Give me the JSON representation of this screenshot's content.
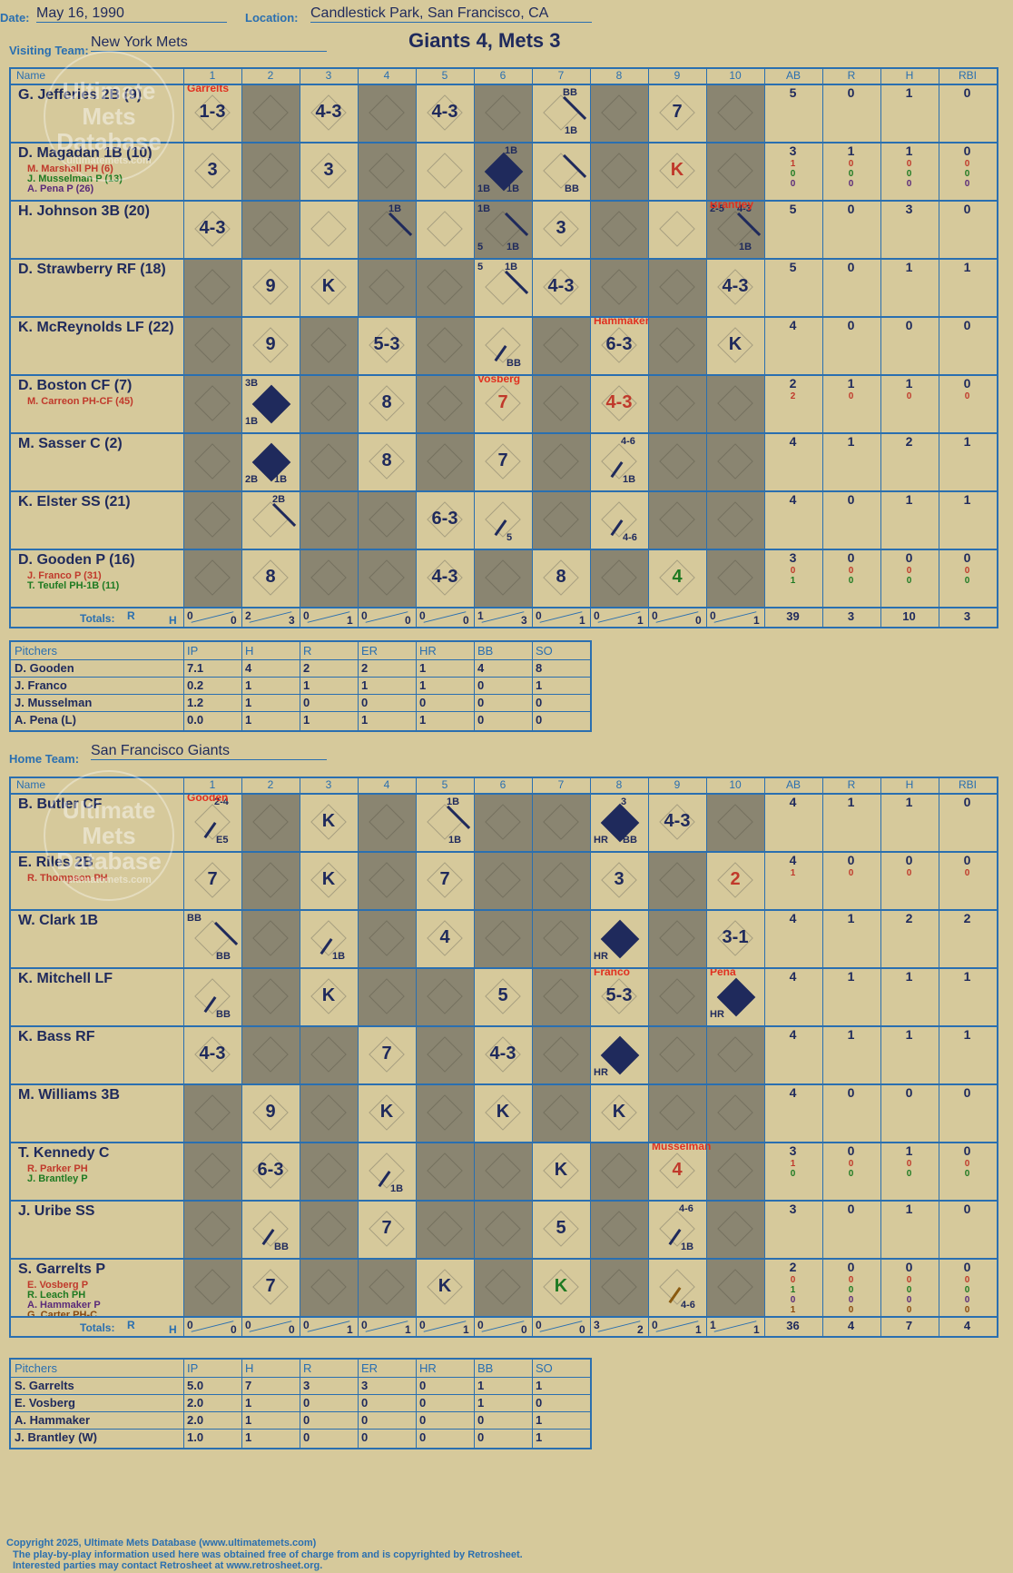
{
  "header": {
    "date_label": "Date:",
    "date": "May 16, 1990",
    "location_label": "Location:",
    "location": "Candlestick Park, San Francisco, CA",
    "result": "Giants 4, Mets 3"
  },
  "visitors": {
    "label": "Visiting Team:",
    "team": "New York Mets",
    "col_name": "Name",
    "innings": [
      "1",
      "2",
      "3",
      "4",
      "5",
      "6",
      "7",
      "8",
      "9",
      "10"
    ],
    "stat_heads": [
      "AB",
      "R",
      "H",
      "RBI"
    ],
    "players": [
      {
        "name": "G. Jefferies 2B (9)",
        "subs": [],
        "stats": [
          "5",
          "0",
          "1",
          "0"
        ],
        "subs_stats": []
      },
      {
        "name": "D. Magadan 1B (10)",
        "subs": [
          {
            "n": "M. Marshall PH (6)",
            "c": "#c0392b"
          },
          {
            "n": "J. Musselman P (13)",
            "c": "#1e7a22"
          },
          {
            "n": "A. Pena P (26)",
            "c": "#5a2a7a"
          }
        ],
        "stats": [
          "3",
          "1",
          "1",
          "0"
        ],
        "subs_stats": [
          [
            "1",
            "0",
            "0",
            "0"
          ],
          [
            "0",
            "0",
            "0",
            "0"
          ],
          [
            "0",
            "0",
            "0",
            "0"
          ]
        ]
      },
      {
        "name": "H. Johnson 3B (20)",
        "subs": [],
        "stats": [
          "5",
          "0",
          "3",
          "0"
        ],
        "subs_stats": []
      },
      {
        "name": "D. Strawberry RF (18)",
        "subs": [],
        "stats": [
          "5",
          "0",
          "1",
          "1"
        ],
        "subs_stats": []
      },
      {
        "name": "K. McReynolds LF (22)",
        "subs": [],
        "stats": [
          "4",
          "0",
          "0",
          "0"
        ],
        "subs_stats": []
      },
      {
        "name": "D. Boston CF (7)",
        "subs": [
          {
            "n": "M. Carreon PH-CF (45)",
            "c": "#c0392b"
          }
        ],
        "stats": [
          "2",
          "1",
          "1",
          "0"
        ],
        "subs_stats": [
          [
            "2",
            "0",
            "0",
            "0"
          ]
        ]
      },
      {
        "name": "M. Sasser C (2)",
        "subs": [],
        "stats": [
          "4",
          "1",
          "2",
          "1"
        ],
        "subs_stats": []
      },
      {
        "name": "K. Elster SS (21)",
        "subs": [],
        "stats": [
          "4",
          "0",
          "1",
          "1"
        ],
        "subs_stats": []
      },
      {
        "name": "D. Gooden P (16)",
        "subs": [
          {
            "n": "J. Franco P (31)",
            "c": "#c0392b"
          },
          {
            "n": "T. Teufel PH-1B (11)",
            "c": "#1e7a22"
          }
        ],
        "stats": [
          "3",
          "0",
          "0",
          "0"
        ],
        "subs_stats": [
          [
            "0",
            "0",
            "0",
            "0"
          ],
          [
            "1",
            "0",
            "0",
            "0"
          ]
        ]
      }
    ],
    "plays": [
      [
        {
          "i": 0,
          "t": "1-3"
        },
        {
          "i": 2,
          "t": "4-3"
        },
        {
          "i": 4,
          "t": "4-3"
        },
        {
          "i": 6,
          "t": "",
          "tr": "BB",
          "br": "1B",
          "half": true
        },
        {
          "i": 8,
          "t": "7"
        }
      ],
      [
        {
          "i": 0,
          "t": "3"
        },
        {
          "i": 2,
          "t": "3"
        },
        {
          "i": 5,
          "t": "",
          "run": true,
          "tr": "1B",
          "bl": "1B",
          "br": "1B"
        },
        {
          "i": 6,
          "t": "",
          "br": "BB",
          "half": true
        },
        {
          "i": 8,
          "t": "K",
          "red": true
        }
      ],
      [
        {
          "i": 0,
          "t": "4-3"
        },
        {
          "i": 3,
          "t": "",
          "tr": "1B",
          "half": true
        },
        {
          "i": 5,
          "t": "",
          "tl": "1B",
          "bl": "5",
          "br": "1B",
          "half": true
        },
        {
          "i": 6,
          "t": "3"
        },
        {
          "i": 9,
          "t": "",
          "tl": "2-5",
          "tr": "4-3",
          "br": "1B",
          "half": true
        }
      ],
      [
        {
          "i": 1,
          "t": "9"
        },
        {
          "i": 2,
          "t": "K"
        },
        {
          "i": 5,
          "t": "",
          "tl": "5",
          "tr": "1B",
          "half": true
        },
        {
          "i": 6,
          "t": "4-3"
        },
        {
          "i": 9,
          "t": "4-3"
        }
      ],
      [
        {
          "i": 1,
          "t": "9"
        },
        {
          "i": 3,
          "t": "5-3"
        },
        {
          "i": 5,
          "t": "",
          "br": "BB",
          "slash": true
        },
        {
          "i": 7,
          "t": "6-3"
        },
        {
          "i": 9,
          "t": "K"
        }
      ],
      [
        {
          "i": 1,
          "t": "",
          "run": true,
          "tl": "3B",
          "bl": "1B"
        },
        {
          "i": 3,
          "t": "8"
        },
        {
          "i": 5,
          "t": "7",
          "red": true
        },
        {
          "i": 7,
          "t": "4-3",
          "red": true
        }
      ],
      [
        {
          "i": 1,
          "t": "",
          "run": true,
          "bl": "2B",
          "br": "1B"
        },
        {
          "i": 3,
          "t": "8"
        },
        {
          "i": 5,
          "t": "7"
        },
        {
          "i": 7,
          "t": "",
          "tr": "4-6",
          "br": "1B",
          "slash": true
        }
      ],
      [
        {
          "i": 1,
          "t": "",
          "tr": "2B",
          "half": true
        },
        {
          "i": 4,
          "t": "6-3"
        },
        {
          "i": 5,
          "t": "",
          "br": "5",
          "slash": true
        },
        {
          "i": 7,
          "t": "",
          "br": "4-6",
          "slash": true
        }
      ],
      [
        {
          "i": 1,
          "t": "8"
        },
        {
          "i": 4,
          "t": "4-3"
        },
        {
          "i": 6,
          "t": "8"
        },
        {
          "i": 8,
          "t": "4",
          "green": true
        }
      ]
    ],
    "shade": [
      [
        1,
        3,
        5,
        7,
        9
      ],
      [
        1,
        3,
        5,
        7,
        9
      ],
      [
        1,
        3,
        5,
        7,
        9
      ],
      [
        0,
        3,
        4,
        7,
        8
      ],
      [
        0,
        2,
        4,
        6,
        8
      ],
      [
        0,
        2,
        4,
        6,
        8,
        9
      ],
      [
        0,
        2,
        4,
        6,
        8,
        9
      ],
      [
        0,
        2,
        3,
        6,
        8,
        9
      ],
      [
        0,
        2,
        3,
        5,
        7,
        9
      ]
    ],
    "markers": [
      {
        "row": 0,
        "inn": 0,
        "text": "Garrelts"
      },
      {
        "row": 2,
        "inn": 9,
        "text": "Brantley"
      },
      {
        "row": 4,
        "inn": 7,
        "text": "Hammaker"
      },
      {
        "row": 5,
        "inn": 5,
        "text": "Vosberg"
      }
    ],
    "totals_label": "Totals:",
    "r_label": "R",
    "h_label": "H",
    "inning_totals": [
      [
        "0",
        "0"
      ],
      [
        "2",
        "3"
      ],
      [
        "0",
        "1"
      ],
      [
        "0",
        "0"
      ],
      [
        "0",
        "0"
      ],
      [
        "1",
        "3"
      ],
      [
        "0",
        "1"
      ],
      [
        "0",
        "1"
      ],
      [
        "0",
        "0"
      ],
      [
        "0",
        "1"
      ]
    ],
    "totals": [
      "39",
      "3",
      "10",
      "3"
    ],
    "pitchers_head": [
      "Pitchers",
      "IP",
      "H",
      "R",
      "ER",
      "HR",
      "BB",
      "SO"
    ],
    "pitchers": [
      [
        "D. Gooden",
        "7.1",
        "4",
        "2",
        "2",
        "1",
        "4",
        "8"
      ],
      [
        "J. Franco",
        "0.2",
        "1",
        "1",
        "1",
        "1",
        "0",
        "1"
      ],
      [
        "J. Musselman",
        "1.2",
        "1",
        "0",
        "0",
        "0",
        "0",
        "0"
      ],
      [
        "A. Pena (L)",
        "0.0",
        "1",
        "1",
        "1",
        "1",
        "0",
        "0"
      ]
    ]
  },
  "home": {
    "label": "Home Team:",
    "team": "San Francisco Giants",
    "col_name": "Name",
    "innings": [
      "1",
      "2",
      "3",
      "4",
      "5",
      "6",
      "7",
      "8",
      "9",
      "10"
    ],
    "stat_heads": [
      "AB",
      "R",
      "H",
      "RBI"
    ],
    "players": [
      {
        "name": "B. Butler CF",
        "subs": [],
        "stats": [
          "4",
          "1",
          "1",
          "0"
        ],
        "subs_stats": []
      },
      {
        "name": "E. Riles 2B",
        "subs": [
          {
            "n": "R. Thompson PH",
            "c": "#c0392b"
          }
        ],
        "stats": [
          "4",
          "0",
          "0",
          "0"
        ],
        "subs_stats": [
          [
            "1",
            "0",
            "0",
            "0"
          ]
        ]
      },
      {
        "name": "W. Clark 1B",
        "subs": [],
        "stats": [
          "4",
          "1",
          "2",
          "2"
        ],
        "subs_stats": []
      },
      {
        "name": "K. Mitchell LF",
        "subs": [],
        "stats": [
          "4",
          "1",
          "1",
          "1"
        ],
        "subs_stats": []
      },
      {
        "name": "K. Bass RF",
        "subs": [],
        "stats": [
          "4",
          "1",
          "1",
          "1"
        ],
        "subs_stats": []
      },
      {
        "name": "M. Williams 3B",
        "subs": [],
        "stats": [
          "4",
          "0",
          "0",
          "0"
        ],
        "subs_stats": []
      },
      {
        "name": "T. Kennedy C",
        "subs": [
          {
            "n": "R. Parker PH",
            "c": "#c0392b"
          },
          {
            "n": "J. Brantley P",
            "c": "#1e7a22"
          }
        ],
        "stats": [
          "3",
          "0",
          "1",
          "0"
        ],
        "subs_stats": [
          [
            "1",
            "0",
            "0",
            "0"
          ],
          [
            "0",
            "0",
            "0",
            "0"
          ]
        ]
      },
      {
        "name": "J. Uribe SS",
        "subs": [],
        "stats": [
          "3",
          "0",
          "1",
          "0"
        ],
        "subs_stats": []
      },
      {
        "name": "S. Garrelts P",
        "subs": [
          {
            "n": "E. Vosberg P",
            "c": "#c0392b"
          },
          {
            "n": "R. Leach PH",
            "c": "#1e7a22"
          },
          {
            "n": "A. Hammaker P",
            "c": "#5a2a7a"
          },
          {
            "n": "G. Carter PH-C",
            "c": "#8a4a10"
          }
        ],
        "stats": [
          "2",
          "0",
          "0",
          "0"
        ],
        "subs_stats": [
          [
            "0",
            "0",
            "0",
            "0"
          ],
          [
            "1",
            "0",
            "0",
            "0"
          ],
          [
            "0",
            "0",
            "0",
            "0"
          ],
          [
            "1",
            "0",
            "0",
            "0"
          ]
        ]
      }
    ],
    "plays": [
      [
        {
          "i": 0,
          "t": "",
          "tr": "2-4",
          "br": "E5",
          "slash": true
        },
        {
          "i": 2,
          "t": "K"
        },
        {
          "i": 4,
          "t": "",
          "tr": "1B",
          "br": "1B",
          "half": true
        },
        {
          "i": 7,
          "t": "",
          "run": true,
          "tr": "3",
          "bl": "HR",
          "br": "BB"
        },
        {
          "i": 8,
          "t": "4-3"
        }
      ],
      [
        {
          "i": 0,
          "t": "7"
        },
        {
          "i": 2,
          "t": "K"
        },
        {
          "i": 4,
          "t": "7"
        },
        {
          "i": 7,
          "t": "3"
        },
        {
          "i": 9,
          "t": "2",
          "red": true
        }
      ],
      [
        {
          "i": 0,
          "t": "",
          "tl": "BB",
          "br": "BB",
          "half": true
        },
        {
          "i": 2,
          "t": "",
          "br": "1B",
          "slash": true
        },
        {
          "i": 4,
          "t": "4"
        },
        {
          "i": 7,
          "t": "",
          "run": true,
          "bl": "HR"
        },
        {
          "i": 9,
          "t": "3-1"
        }
      ],
      [
        {
          "i": 0,
          "t": "",
          "br": "BB",
          "slash": true
        },
        {
          "i": 2,
          "t": "K"
        },
        {
          "i": 5,
          "t": "5"
        },
        {
          "i": 7,
          "t": "5-3"
        },
        {
          "i": 9,
          "t": "",
          "run": true,
          "bl": "HR"
        }
      ],
      [
        {
          "i": 0,
          "t": "4-3"
        },
        {
          "i": 3,
          "t": "7"
        },
        {
          "i": 5,
          "t": "4-3"
        },
        {
          "i": 7,
          "t": "",
          "run": true,
          "bl": "HR"
        }
      ],
      [
        {
          "i": 1,
          "t": "9"
        },
        {
          "i": 3,
          "t": "K"
        },
        {
          "i": 5,
          "t": "K"
        },
        {
          "i": 7,
          "t": "K"
        }
      ],
      [
        {
          "i": 1,
          "t": "6-3"
        },
        {
          "i": 3,
          "t": "",
          "br": "1B",
          "slash": true
        },
        {
          "i": 6,
          "t": "K"
        },
        {
          "i": 8,
          "t": "4",
          "red": true
        }
      ],
      [
        {
          "i": 1,
          "t": "",
          "br": "BB",
          "slash": true
        },
        {
          "i": 3,
          "t": "7"
        },
        {
          "i": 6,
          "t": "5"
        },
        {
          "i": 8,
          "t": "",
          "tr": "4-6",
          "br": "1B",
          "slash": true
        }
      ],
      [
        {
          "i": 1,
          "t": "7"
        },
        {
          "i": 4,
          "t": "K"
        },
        {
          "i": 6,
          "t": "K",
          "green": true
        },
        {
          "i": 8,
          "t": "",
          "br": "4-6",
          "slash": true,
          "brown": true
        }
      ]
    ],
    "shade": [
      [
        1,
        3,
        5,
        6,
        9
      ],
      [
        1,
        3,
        5,
        6,
        8
      ],
      [
        1,
        3,
        5,
        6,
        8
      ],
      [
        1,
        3,
        4,
        6,
        8
      ],
      [
        1,
        2,
        4,
        6,
        8,
        9
      ],
      [
        0,
        2,
        4,
        6,
        8,
        9
      ],
      [
        0,
        2,
        4,
        5,
        7,
        9
      ],
      [
        0,
        2,
        4,
        5,
        7,
        9
      ],
      [
        0,
        2,
        3,
        5,
        7,
        9
      ]
    ],
    "markers": [
      {
        "row": 0,
        "inn": 0,
        "text": "Gooden"
      },
      {
        "row": 3,
        "inn": 7,
        "text": "Franco"
      },
      {
        "row": 3,
        "inn": 9,
        "text": "Pena"
      },
      {
        "row": 6,
        "inn": 8,
        "text": "Musselman"
      }
    ],
    "totals_label": "Totals:",
    "r_label": "R",
    "h_label": "H",
    "inning_totals": [
      [
        "0",
        "0"
      ],
      [
        "0",
        "0"
      ],
      [
        "0",
        "1"
      ],
      [
        "0",
        "1"
      ],
      [
        "0",
        "1"
      ],
      [
        "0",
        "0"
      ],
      [
        "0",
        "0"
      ],
      [
        "3",
        "2"
      ],
      [
        "0",
        "1"
      ],
      [
        "1",
        "1"
      ]
    ],
    "totals": [
      "36",
      "4",
      "7",
      "4"
    ],
    "pitchers_head": [
      "Pitchers",
      "IP",
      "H",
      "R",
      "ER",
      "HR",
      "BB",
      "SO"
    ],
    "pitchers": [
      [
        "S. Garrelts",
        "5.0",
        "7",
        "3",
        "3",
        "0",
        "1",
        "1"
      ],
      [
        "E. Vosberg",
        "2.0",
        "1",
        "0",
        "0",
        "0",
        "1",
        "0"
      ],
      [
        "A. Hammaker",
        "2.0",
        "1",
        "0",
        "0",
        "0",
        "0",
        "1"
      ],
      [
        "J. Brantley (W)",
        "1.0",
        "1",
        "0",
        "0",
        "0",
        "0",
        "1"
      ]
    ]
  },
  "watermark": {
    "line1": "Ultimate",
    "line2": "Mets",
    "line3": "Database",
    "url": "ultimatemets.com"
  },
  "footer": {
    "line1": "Copyright 2025, Ultimate Mets Database (www.ultimatemets.com)",
    "line2": "The play-by-play information used here was obtained free of charge from and is copyrighted by Retrosheet.",
    "line3": "Interested parties may contact Retrosheet at www.retrosheet.org."
  }
}
